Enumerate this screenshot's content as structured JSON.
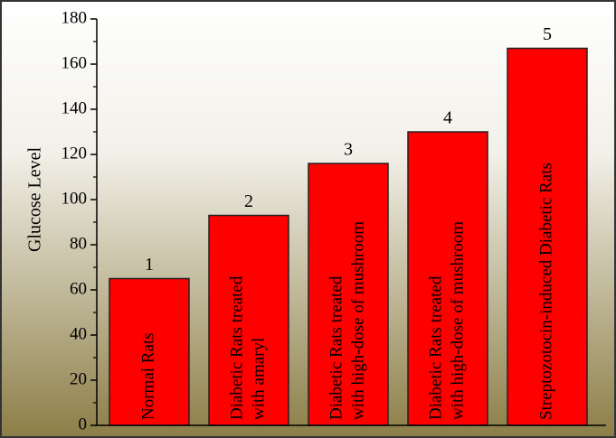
{
  "chart_data": {
    "type": "bar",
    "y_label": "Glucose Level",
    "categories": [
      [
        "Normal Rats"
      ],
      [
        "Diabetic Rats treated",
        "with amaryl"
      ],
      [
        "Diabetic Rats treated",
        "with high-dose of mushroom"
      ],
      [
        "Diabetic Rats treated",
        "with high-dose of mushroom"
      ],
      [
        "Streptozotocin-induced Diabetic Rats"
      ]
    ],
    "bar_labels": [
      "1",
      "2",
      "3",
      "4",
      "5"
    ],
    "values": [
      65,
      93,
      116,
      130,
      167
    ],
    "color": "#ff0000",
    "ylim": [
      0,
      180
    ],
    "yticks": [
      0,
      20,
      40,
      60,
      80,
      100,
      120,
      140,
      160,
      180
    ],
    "yminorticks": [
      10,
      30,
      50,
      70,
      90,
      110,
      130,
      150,
      170
    ]
  }
}
